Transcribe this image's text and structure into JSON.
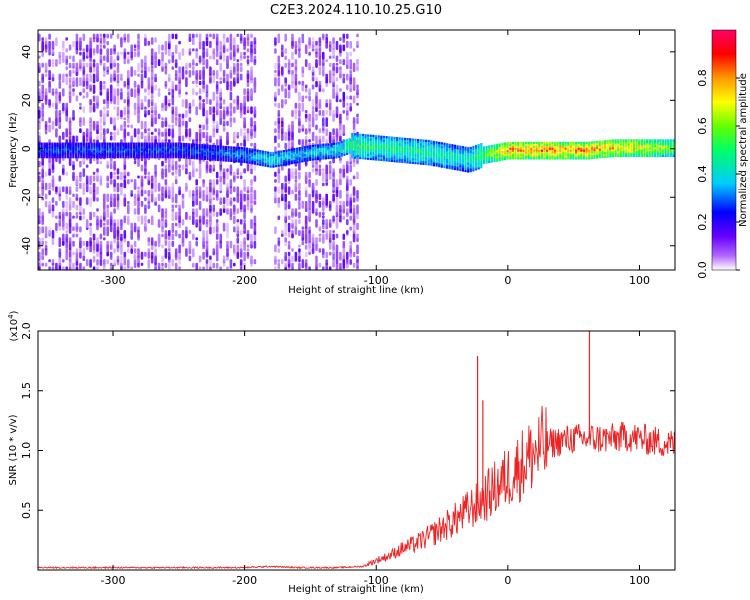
{
  "title": "C2E3.2024.110.10.25.G10",
  "chart_data": [
    {
      "type": "heatmap",
      "title": "C2E3.2024.110.10.25.G10",
      "xlabel": "Height of straight line (km)",
      "ylabel": "Frequency (Hz)",
      "xlim": [
        -357,
        127
      ],
      "ylim": [
        -50,
        49
      ],
      "xticks": [
        -300,
        -200,
        -100,
        0,
        100
      ],
      "yticks": [
        -40,
        -20,
        0,
        20,
        40
      ],
      "colorbar": {
        "label": "Normalized spectral amplitude",
        "range": [
          0,
          1
        ],
        "ticks": [
          "0.0",
          "0.2",
          "0.4",
          "0.6",
          "0.8"
        ],
        "colors": [
          "#ffffff",
          "#b266ff",
          "#6600ff",
          "#0000ff",
          "#00ccff",
          "#00ff66",
          "#66ff00",
          "#ffff00",
          "#ff9900",
          "#ff0000",
          "#ff0066"
        ]
      },
      "ridge": {
        "x": [
          -357,
          -300,
          -250,
          -200,
          -180,
          -170,
          -150,
          -130,
          -120,
          -100,
          -80,
          -60,
          -40,
          -30,
          -20,
          -10,
          0,
          20,
          40,
          60,
          80,
          100,
          127
        ],
        "freq": [
          0,
          0,
          0,
          -2,
          -4,
          -3,
          -1,
          0,
          2,
          1,
          0,
          -1,
          -3,
          -4,
          -2,
          -1,
          0,
          0,
          0,
          0,
          1,
          1,
          1
        ],
        "amplitude": [
          0.3,
          0.3,
          0.3,
          0.35,
          0.45,
          0.4,
          0.4,
          0.45,
          0.55,
          0.5,
          0.5,
          0.5,
          0.45,
          0.45,
          0.6,
          0.7,
          0.85,
          0.85,
          0.85,
          0.85,
          0.8,
          0.75,
          0.6
        ]
      },
      "noise_region": {
        "x_end": -115,
        "gap": [
          -192,
          -178
        ]
      }
    },
    {
      "type": "line",
      "xlabel": "Height of straight line (km)",
      "ylabel": "SNR (10 * v/v)",
      "multiplier": "(x10",
      "multiplier_exp": "4",
      "multiplier_close": ")",
      "xlim": [
        -357,
        127
      ],
      "ylim": [
        0,
        2.0
      ],
      "xticks": [
        -300,
        -200,
        -100,
        0,
        100
      ],
      "yticks": [
        "0.5",
        "1.0",
        "1.5",
        "2.0"
      ],
      "series": [
        {
          "color": "#ee2222",
          "x": [
            -357,
            -300,
            -250,
            -200,
            -180,
            -160,
            -130,
            -110,
            -100,
            -90,
            -80,
            -70,
            -60,
            -50,
            -40,
            -30,
            -20,
            -10,
            0,
            10,
            20,
            30,
            40,
            50,
            60,
            70,
            80,
            90,
            100,
            110,
            127
          ],
          "y": [
            0.02,
            0.02,
            0.02,
            0.02,
            0.03,
            0.02,
            0.02,
            0.03,
            0.08,
            0.12,
            0.18,
            0.22,
            0.28,
            0.35,
            0.42,
            0.5,
            0.58,
            0.68,
            0.78,
            0.88,
            0.98,
            1.05,
            1.08,
            1.1,
            1.1,
            1.1,
            1.1,
            1.12,
            1.1,
            1.08,
            1.05
          ],
          "spikes": [
            {
              "x": -23,
              "y": 1.79
            },
            {
              "x": -19,
              "y": 1.42
            },
            {
              "x": 62,
              "y": 2.0
            }
          ]
        }
      ]
    }
  ]
}
